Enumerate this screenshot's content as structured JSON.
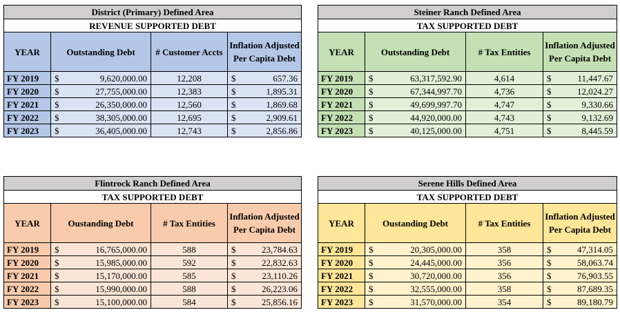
{
  "tables": [
    {
      "title": "District (Primary) Defined Area",
      "subtitle": "REVENUE SUPPORTED DEBT",
      "headers": [
        "YEAR",
        "Outstanding Debt",
        "# Customer Accts",
        "Inflation Adjusted Per Capita Debt"
      ],
      "rows": [
        {
          "year": "FY 2019",
          "debt_sym": "$",
          "debt": "9,620,000.00",
          "count": "12,208",
          "pc_sym": "$",
          "per_capita": "657.36"
        },
        {
          "year": "FY 2020",
          "debt_sym": "$",
          "debt": "27,755,000.00",
          "count": "12,383",
          "pc_sym": "$",
          "per_capita": "1,895.31"
        },
        {
          "year": "FY 2021",
          "debt_sym": "$",
          "debt": "26,350,000.00",
          "count": "12,560",
          "pc_sym": "$",
          "per_capita": "1,869.68"
        },
        {
          "year": "FY 2022",
          "debt_sym": "$",
          "debt": "38,305,000.00",
          "count": "12,695",
          "pc_sym": "$",
          "per_capita": "2,909.61"
        },
        {
          "year": "FY 2023",
          "debt_sym": "$",
          "debt": "36,405,000.00",
          "count": "12,743",
          "pc_sym": "$",
          "per_capita": "2,856.86"
        }
      ]
    },
    {
      "title": "Steiner Ranch Defined Area",
      "subtitle": "TAX SUPPORTED DEBT",
      "headers": [
        "YEAR",
        "Outstanding Debt",
        "# Tax Entities",
        "Inflation Adjusted Per Capita Debt"
      ],
      "rows": [
        {
          "year": "FY 2019",
          "debt_sym": "$",
          "debt": "63,317,592.90",
          "count": "4,614",
          "pc_sym": "$",
          "per_capita": "11,447.67"
        },
        {
          "year": "FY 2020",
          "debt_sym": "$",
          "debt": "67,344,997.70",
          "count": "4,736",
          "pc_sym": "$",
          "per_capita": "12,024.27"
        },
        {
          "year": "FY 2021",
          "debt_sym": "$",
          "debt": "49,699,997.70",
          "count": "4,747",
          "pc_sym": "$",
          "per_capita": "9,330.66"
        },
        {
          "year": "FY 2022",
          "debt_sym": "$",
          "debt": "44,920,000.00",
          "count": "4,743",
          "pc_sym": "$",
          "per_capita": "9,132.69"
        },
        {
          "year": "FY 2023",
          "debt_sym": "$",
          "debt": "40,125,000.00",
          "count": "4,751",
          "pc_sym": "$",
          "per_capita": "8,445.59"
        }
      ]
    },
    {
      "title": "Flintrock Ranch Defined Area",
      "subtitle": "TAX SUPPORTED DEBT",
      "headers": [
        "YEAR",
        "Oustanding Debt",
        "# Tax Entities",
        "Inflation Adjusted Per Capita Debt"
      ],
      "rows": [
        {
          "year": "FY 2019",
          "debt_sym": "$",
          "debt": "16,765,000.00",
          "count": "588",
          "pc_sym": "$",
          "per_capita": "23,784.63"
        },
        {
          "year": "FY 2020",
          "debt_sym": "$",
          "debt": "15,985,000.00",
          "count": "592",
          "pc_sym": "$",
          "per_capita": "22,832.63"
        },
        {
          "year": "FY 2021",
          "debt_sym": "$",
          "debt": "15,170,000.00",
          "count": "585",
          "pc_sym": "$",
          "per_capita": "23,110.26"
        },
        {
          "year": "FY 2022",
          "debt_sym": "$",
          "debt": "15,990,000.00",
          "count": "588",
          "pc_sym": "$",
          "per_capita": "26,223.06"
        },
        {
          "year": "FY 2023",
          "debt_sym": "$",
          "debt": "15,100,000.00",
          "count": "584",
          "pc_sym": "$",
          "per_capita": "25,856.16"
        }
      ]
    },
    {
      "title": "Serene Hills Defined Area",
      "subtitle": "TAX SUPPORTED DEBT",
      "headers": [
        "YEAR",
        "Oustanding Debt",
        "# Tax Entities",
        "Inflation Adjusted Per Capita Debt"
      ],
      "rows": [
        {
          "year": "FY 2019",
          "debt_sym": "$",
          "debt": "20,305,000.00",
          "count": "358",
          "pc_sym": "$",
          "per_capita": "47,314.05"
        },
        {
          "year": "FY 2020",
          "debt_sym": "$",
          "debt": "24,445,000.00",
          "count": "356",
          "pc_sym": "$",
          "per_capita": "58,063.74"
        },
        {
          "year": "FY 2021",
          "debt_sym": "$",
          "debt": "30,720,000.00",
          "count": "356",
          "pc_sym": "$",
          "per_capita": "76,903.55"
        },
        {
          "year": "FY 2022",
          "debt_sym": "$",
          "debt": "32,555,000.00",
          "count": "358",
          "pc_sym": "$",
          "per_capita": "87,689.35"
        },
        {
          "year": "FY 2023",
          "debt_sym": "$",
          "debt": "31,570,000.00",
          "count": "354",
          "pc_sym": "$",
          "per_capita": "89,180.79"
        }
      ]
    }
  ],
  "colors": {
    "title_bg": "#d0cece",
    "blue_header": "#b4c7e7",
    "blue_cell": "#dae3f3",
    "green_header": "#c5e0b4",
    "green_cell": "#e2f0d9",
    "orange_header": "#f8cbad",
    "orange_cell": "#fbe5d6",
    "yellow_header": "#ffe699",
    "yellow_cell": "#fff2cc"
  }
}
